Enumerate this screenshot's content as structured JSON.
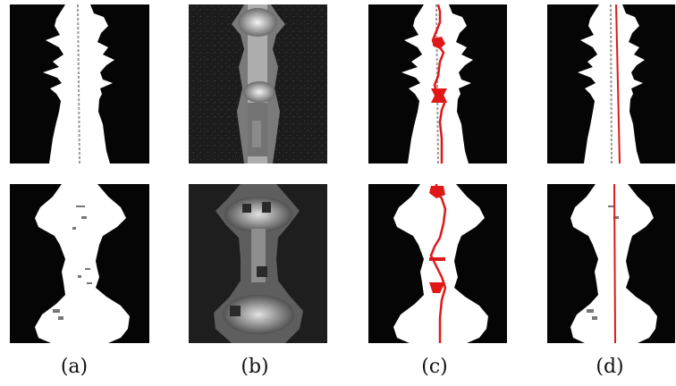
{
  "figure": {
    "captions": [
      "(a)",
      "(b)",
      "(c)",
      "(d)"
    ],
    "colors": {
      "background": "#ffffff",
      "panel_black": "#050505",
      "foreground_white": "#ffffff",
      "distance_map_gray": "#9a9a9a",
      "path_red": "#e01818"
    }
  }
}
